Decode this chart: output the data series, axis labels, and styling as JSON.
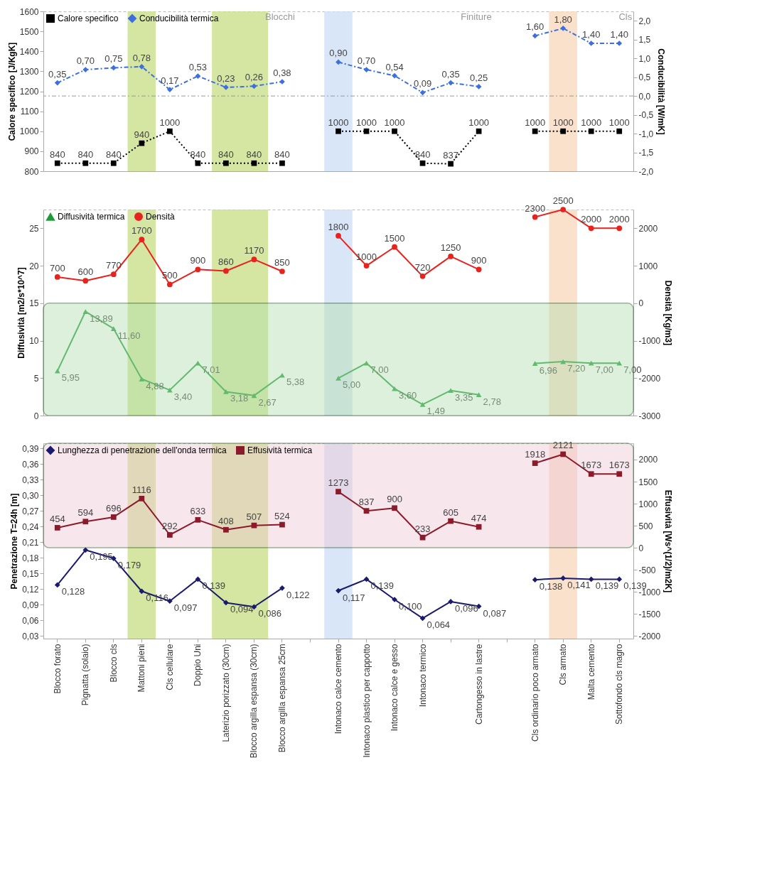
{
  "chart_data": [
    {
      "type": "line",
      "categories": [
        "Blocco forato",
        "Pignatta (solaio)",
        "Blocco cls",
        "Mattoni pieni",
        "Cls cellulare",
        "Doppio Uni",
        "Laterizio porizzato (30cm)",
        "Blocco argilla espansa (30cm)",
        "Blocco argilla espansa 25cm",
        null,
        "Intonaco calce cemento",
        "Intonaco plastico per cappotto",
        "Intonaco calce e gesso",
        "Intonaco termico",
        null,
        "Cartongesso in lastre",
        null,
        "Cls ordinario poco armato",
        "Cls armato",
        "Malta cemento",
        "Sottofondo cls magro"
      ],
      "ylabel": "Calore specifico [J/KgK]",
      "y2label": "Conducibilità [W/mK]",
      "ylim": [
        800,
        1600
      ],
      "yticks": [
        800,
        900,
        1000,
        1100,
        1200,
        1300,
        1400,
        1500,
        1600
      ],
      "y2lim": [
        -2,
        2.25
      ],
      "y2ticks": [
        {
          "value": -2,
          "label": "-2,0"
        },
        {
          "value": -1.5,
          "label": "-1,5"
        },
        {
          "value": -1,
          "label": "-1,0"
        },
        {
          "value": -0.5,
          "label": "-0,5"
        },
        {
          "value": 0,
          "label": "0,0"
        },
        {
          "value": 0.5,
          "label": "0,5"
        },
        {
          "value": 1,
          "label": "1,0"
        },
        {
          "value": 1.5,
          "label": "1,5"
        },
        {
          "value": 2,
          "label": "2,0"
        }
      ],
      "series": [
        {
          "name": "Calore specifico",
          "color": "#000000",
          "marker": "square",
          "line_style": "dotted",
          "values": [
            840,
            840,
            840,
            940,
            1000,
            840,
            840,
            840,
            840,
            null,
            1000,
            1000,
            1000,
            840,
            837,
            1000,
            null,
            1000,
            1000,
            1000,
            1000
          ],
          "data_labels": true
        },
        {
          "name": "Conducibilità termica",
          "color": "#3d6fe0",
          "marker": "diamond",
          "line_style": "dashed",
          "axis": "y2",
          "values": [
            0.35,
            0.7,
            0.75,
            0.78,
            0.17,
            0.53,
            0.23,
            0.26,
            0.38,
            null,
            0.9,
            0.7,
            0.54,
            0.09,
            0.35,
            0.25,
            null,
            1.6,
            1.8,
            1.4,
            1.4
          ],
          "value_labels": [
            "0,35",
            "0,70",
            "0,75",
            "0,78",
            "0,17",
            "0,53",
            "0,23",
            "0,26",
            "0,38",
            null,
            "0,90",
            "0,70",
            "0,54",
            "0,09",
            "0,35",
            "0,25",
            null,
            "1,60",
            "1,80",
            "1,40",
            "1,40"
          ]
        }
      ],
      "ref_lines": [
        {
          "axis": "y2",
          "value": 0,
          "color": "#999999",
          "line_style": "dashed"
        }
      ],
      "bands": [
        {
          "axis": "x",
          "from": "Mattoni pieni",
          "to": "Mattoni pieni",
          "color": "#c9e08a"
        },
        {
          "axis": "x",
          "from": "Laterizio porizzato (30cm)",
          "to": "Blocco argilla espansa (30cm)",
          "color": "#c9e08a"
        },
        {
          "axis": "x",
          "from": "Intonaco calce cemento",
          "to": "Intonaco calce cemento",
          "color": "#cfe0f5"
        },
        {
          "axis": "x",
          "from": "Cls armato",
          "to": "Cls armato",
          "color": "#f8d9bf"
        }
      ],
      "annotations": [
        "Blocchi",
        "Finiture",
        "Cls"
      ],
      "legend": "top left",
      "tick_labels": "y",
      "grid": false
    },
    {
      "type": "line",
      "categories": [
        "Blocco forato",
        "Pignatta (solaio)",
        "Blocco cls",
        "Mattoni pieni",
        "Cls cellulare",
        "Doppio Uni",
        "Laterizio porizzato (30cm)",
        "Blocco argilla espansa (30cm)",
        "Blocco argilla espansa 25cm",
        null,
        "Intonaco calce cemento",
        "Intonaco plastico per cappotto",
        "Intonaco calce e gesso",
        "Intonaco termico",
        null,
        "Cartongesso in lastre",
        null,
        "Cls ordinario poco armato",
        "Cls armato",
        "Malta cemento",
        "Sottofondo cls magro"
      ],
      "ylabel": "Diffusività [m2/s*10^7]",
      "y2label": "Densità [Kg/m3]",
      "ylim": [
        0,
        27.5
      ],
      "yticks": [
        0,
        5,
        10,
        15,
        20,
        25
      ],
      "y2lim": [
        -3000,
        2500
      ],
      "y2ticks": [
        -3000,
        -2000,
        -1000,
        0,
        1000,
        2000
      ],
      "series": [
        {
          "name": "Diffusività termica",
          "color": "#1f9a3a",
          "marker": "triangle",
          "line_style": "solid",
          "values": [
            5.95,
            13.89,
            11.6,
            4.88,
            3.4,
            7.01,
            3.18,
            2.67,
            5.38,
            null,
            5.0,
            7.0,
            3.6,
            1.49,
            3.35,
            2.78,
            null,
            6.96,
            7.2,
            7.0,
            7.0
          ],
          "value_labels": [
            "5,95",
            "13,89",
            "11,60",
            "4,88",
            "3,40",
            "7,01",
            "3,18",
            "2,67",
            "5,38",
            null,
            "5,00",
            "7,00",
            "3,60",
            "1,49",
            "3,35",
            "2,78",
            null,
            "6,96",
            "7,20",
            "7,00",
            "7,00"
          ]
        },
        {
          "name": "Densità",
          "color": "#e8231e",
          "marker": "circle",
          "line_style": "solid",
          "axis": "y2",
          "values": [
            700,
            600,
            770,
            1700,
            500,
            900,
            860,
            1170,
            850,
            null,
            1800,
            1000,
            1500,
            720,
            1250,
            900,
            null,
            2300,
            2500,
            2000,
            2000
          ],
          "data_labels": true
        }
      ],
      "bands": [
        {
          "axis": "x",
          "from": "Mattoni pieni",
          "to": "Mattoni pieni",
          "color": "#c9e08a"
        },
        {
          "axis": "x",
          "from": "Laterizio porizzato (30cm)",
          "to": "Blocco argilla espansa (30cm)",
          "color": "#c9e08a"
        },
        {
          "axis": "x",
          "from": "Intonaco calce cemento",
          "to": "Intonaco calce cemento",
          "color": "#cfe0f5"
        },
        {
          "axis": "x",
          "from": "Cls armato",
          "to": "Cls armato",
          "color": "#f8d9bf"
        },
        {
          "axis": "y2",
          "from": -3000,
          "to": 0,
          "color": "#b5e0b0"
        }
      ],
      "legend": "top left",
      "tick_labels": "y",
      "grid": false
    },
    {
      "type": "line",
      "categories": [
        "Blocco forato",
        "Pignatta (solaio)",
        "Blocco cls",
        "Mattoni pieni",
        "Cls cellulare",
        "Doppio Uni",
        "Laterizio porizzato (30cm)",
        "Blocco argilla espansa (30cm)",
        "Blocco argilla espansa 25cm",
        null,
        "Intonaco calce cemento",
        "Intonaco plastico per cappotto",
        "Intonaco calce e gesso",
        "Intonaco termico",
        null,
        "Cartongesso in lastre",
        null,
        "Cls ordinario poco armato",
        "Cls armato",
        "Malta cemento",
        "Sottofondo cls magro"
      ],
      "ylabel": "Penetrazione T=24h [m]",
      "y2label": "Effusività [Ws^(1/2)/m2K]",
      "ylim": [
        0.025,
        0.4
      ],
      "yticks": [
        {
          "value": 0.03,
          "label": "0,03"
        },
        {
          "value": 0.06,
          "label": "0,06"
        },
        {
          "value": 0.09,
          "label": "0,09"
        },
        {
          "value": 0.12,
          "label": "0,12"
        },
        {
          "value": 0.15,
          "label": "0,15"
        },
        {
          "value": 0.18,
          "label": "0,18"
        },
        {
          "value": 0.21,
          "label": "0,21"
        },
        {
          "value": 0.24,
          "label": "0,24"
        },
        {
          "value": 0.27,
          "label": "0,27"
        },
        {
          "value": 0.3,
          "label": "0,30"
        },
        {
          "value": 0.33,
          "label": "0,33"
        },
        {
          "value": 0.36,
          "label": "0,36"
        },
        {
          "value": 0.39,
          "label": "0,39"
        }
      ],
      "y2lim": [
        -2060,
        2370
      ],
      "y2ticks": [
        -2000,
        -1500,
        -1000,
        -500,
        0,
        500,
        1000,
        1500,
        2000
      ],
      "series": [
        {
          "name": "Lunghezza di penetrazione dell'onda termica",
          "color": "#1a1a6e",
          "marker": "diamond",
          "line_style": "solid",
          "values": [
            0.128,
            0.195,
            0.179,
            0.116,
            0.097,
            0.139,
            0.094,
            0.086,
            0.122,
            null,
            0.117,
            0.139,
            0.1,
            0.064,
            0.096,
            0.087,
            null,
            0.138,
            0.141,
            0.139,
            0.139
          ],
          "value_labels": [
            "0,128",
            "0,195",
            "0,179",
            "0,116",
            "0,097",
            "0,139",
            "0,094",
            "0,086",
            "0,122",
            null,
            "0,117",
            "0,139",
            "0,100",
            "0,064",
            "0,096",
            "0,087",
            null,
            "0,138",
            "0,141",
            "0,139",
            "0,139"
          ]
        },
        {
          "name": "Effusività termica",
          "color": "#8b1a2a",
          "marker": "square",
          "line_style": "solid",
          "axis": "y2",
          "values": [
            454,
            594,
            696,
            1116,
            292,
            633,
            408,
            507,
            524,
            null,
            1273,
            837,
            900,
            233,
            605,
            474,
            null,
            1918,
            2121,
            1673,
            1673
          ],
          "data_labels": true
        }
      ],
      "bands": [
        {
          "axis": "x",
          "from": "Mattoni pieni",
          "to": "Mattoni pieni",
          "color": "#c9e08a"
        },
        {
          "axis": "x",
          "from": "Laterizio porizzato (30cm)",
          "to": "Blocco argilla espansa (30cm)",
          "color": "#c9e08a"
        },
        {
          "axis": "x",
          "from": "Intonaco calce cemento",
          "to": "Intonaco calce cemento",
          "color": "#cfe0f5"
        },
        {
          "axis": "x",
          "from": "Cls armato",
          "to": "Cls armato",
          "color": "#f8d9bf"
        },
        {
          "axis": "y2",
          "from": 0,
          "to": 2370,
          "color": "#f0c8d8"
        }
      ],
      "legend": "top left",
      "grid": false
    }
  ]
}
